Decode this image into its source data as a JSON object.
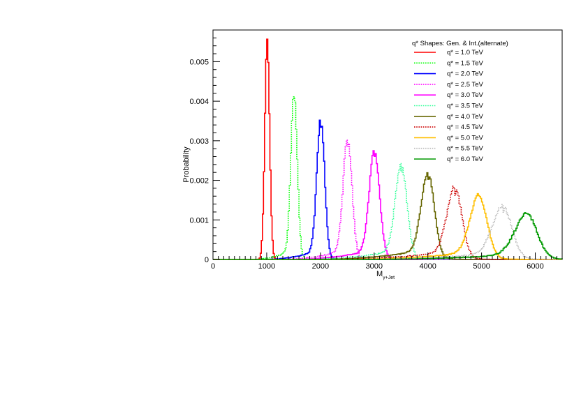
{
  "chart_data": {
    "type": "line",
    "xlabel_main": "M",
    "xlabel_sub": "γ+Jet",
    "ylabel": "Probability",
    "xlim": [
      0,
      6500
    ],
    "ylim": [
      0,
      0.0058
    ],
    "x_ticks": [
      0,
      1000,
      2000,
      3000,
      4000,
      5000,
      6000
    ],
    "y_ticks": [
      0,
      0.001,
      0.002,
      0.003,
      0.004,
      0.005
    ],
    "y_tick_labels": [
      "0",
      "0.001",
      "0.002",
      "0.003",
      "0.004",
      "0.005"
    ],
    "x_tick_labels": [
      "0",
      "1000",
      "2000",
      "3000",
      "4000",
      "5000",
      "6000"
    ],
    "legend_title": "q* Shapes: Gen. & Int.(alternate)",
    "legend_position": "top-right",
    "grid": false,
    "series": [
      {
        "name": "q* = 1.0 TeV",
        "color": "#ff0000",
        "style": "solid",
        "mass": 1000,
        "peak": 0.0055,
        "sigma_l": 45,
        "sigma_r": 45,
        "tail": 0.0
      },
      {
        "name": "q* = 1.5 TeV",
        "color": "#00ff00",
        "style": "dotted",
        "mass": 1500,
        "peak": 0.00405,
        "sigma_l": 60,
        "sigma_r": 60,
        "tail": 0.00025
      },
      {
        "name": "q* = 2.0 TeV",
        "color": "#0000ff",
        "style": "solid",
        "mass": 2000,
        "peak": 0.0034,
        "sigma_l": 75,
        "sigma_r": 70,
        "tail": 0.00025
      },
      {
        "name": "q* = 2.5 TeV",
        "color": "#ff00ff",
        "style": "dotted",
        "mass": 2500,
        "peak": 0.0029,
        "sigma_l": 85,
        "sigma_r": 80,
        "tail": 0.00025
      },
      {
        "name": "q* = 3.0 TeV",
        "color": "#ff00ff",
        "style": "solid",
        "mass": 3000,
        "peak": 0.00255,
        "sigma_l": 100,
        "sigma_r": 95,
        "tail": 0.00025
      },
      {
        "name": "q* = 3.5 TeV",
        "color": "#33ff99",
        "style": "dotted",
        "mass": 3500,
        "peak": 0.0022,
        "sigma_l": 115,
        "sigma_r": 105,
        "tail": 0.00025
      },
      {
        "name": "q* = 4.0 TeV",
        "color": "#666600",
        "style": "solid",
        "mass": 4000,
        "peak": 0.002,
        "sigma_l": 130,
        "sigma_r": 115,
        "tail": 0.00025
      },
      {
        "name": "q* = 4.5 TeV",
        "color": "#cc0000",
        "style": "dotted",
        "mass": 4500,
        "peak": 0.00165,
        "sigma_l": 150,
        "sigma_r": 130,
        "tail": 0.00022
      },
      {
        "name": "q* = 5.0 TeV",
        "color": "#ffbf00",
        "style": "solid",
        "mass": 4950,
        "peak": 0.00145,
        "sigma_l": 170,
        "sigma_r": 145,
        "tail": 0.0002
      },
      {
        "name": "q* = 5.5 TeV",
        "color": "#bbbbbb",
        "style": "dotted",
        "mass": 5400,
        "peak": 0.0012,
        "sigma_l": 200,
        "sigma_r": 160,
        "tail": 0.00018
      },
      {
        "name": "q* = 6.0 TeV",
        "color": "#009900",
        "style": "solid",
        "mass": 5850,
        "peak": 0.00103,
        "sigma_l": 230,
        "sigma_r": 180,
        "tail": 0.00015
      }
    ]
  }
}
